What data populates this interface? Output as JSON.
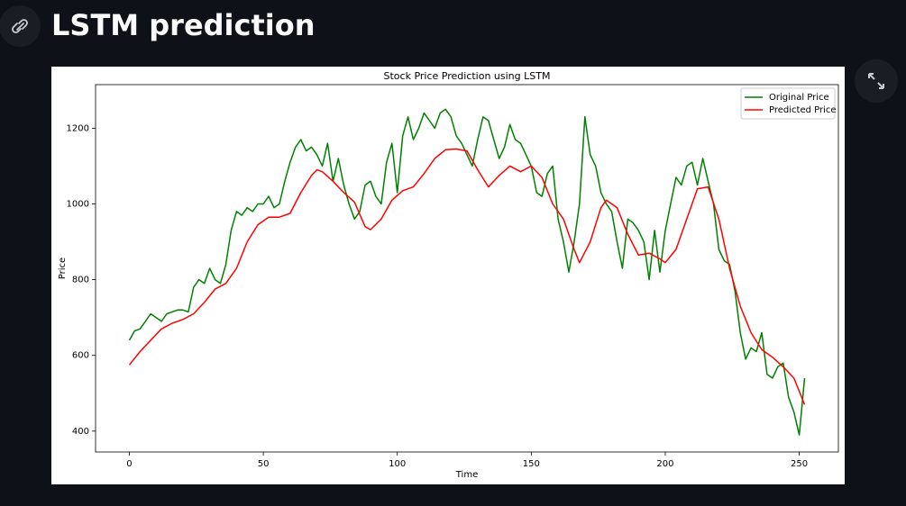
{
  "header": {
    "title": "LSTM prediction"
  },
  "chart_data": {
    "type": "line",
    "title": "Stock Price Prediction using LSTM",
    "xlabel": "Time",
    "ylabel": "Price",
    "xlim": [
      -12.6,
      264.6
    ],
    "ylim": [
      345,
      1315
    ],
    "xticks": [
      0,
      50,
      100,
      150,
      200,
      250
    ],
    "yticks": [
      400,
      600,
      800,
      1000,
      1200
    ],
    "grid": false,
    "legend": "upper right",
    "series": [
      {
        "name": "Original Price",
        "color": "#008000",
        "x": [
          0,
          2,
          4,
          6,
          8,
          10,
          12,
          14,
          16,
          18,
          20,
          22,
          24,
          26,
          28,
          30,
          32,
          34,
          36,
          38,
          40,
          42,
          44,
          46,
          48,
          50,
          52,
          54,
          56,
          58,
          60,
          62,
          64,
          66,
          68,
          70,
          72,
          74,
          76,
          78,
          80,
          82,
          84,
          86,
          88,
          90,
          92,
          94,
          96,
          98,
          100,
          102,
          104,
          106,
          108,
          110,
          112,
          114,
          116,
          118,
          120,
          122,
          124,
          126,
          128,
          130,
          132,
          134,
          136,
          138,
          140,
          142,
          144,
          146,
          148,
          150,
          152,
          154,
          156,
          158,
          160,
          162,
          164,
          166,
          168,
          170,
          172,
          174,
          176,
          178,
          180,
          182,
          184,
          186,
          188,
          190,
          192,
          194,
          196,
          198,
          200,
          202,
          204,
          206,
          208,
          210,
          212,
          214,
          216,
          218,
          220,
          222,
          224,
          226,
          228,
          230,
          232,
          234,
          236,
          238,
          240,
          242,
          244,
          246,
          248,
          250,
          252
        ],
        "values": [
          640,
          665,
          670,
          690,
          710,
          700,
          690,
          710,
          715,
          720,
          720,
          715,
          780,
          800,
          790,
          830,
          800,
          790,
          840,
          930,
          980,
          970,
          990,
          980,
          1000,
          1000,
          1020,
          990,
          1000,
          1060,
          1110,
          1150,
          1170,
          1140,
          1150,
          1130,
          1100,
          1160,
          1060,
          1120,
          1050,
          1000,
          960,
          980,
          1050,
          1060,
          1020,
          1000,
          1110,
          1160,
          1030,
          1180,
          1230,
          1170,
          1200,
          1240,
          1220,
          1200,
          1240,
          1250,
          1230,
          1180,
          1160,
          1130,
          1100,
          1170,
          1230,
          1220,
          1170,
          1120,
          1150,
          1210,
          1170,
          1160,
          1130,
          1100,
          1030,
          1020,
          1080,
          1100,
          960,
          900,
          820,
          900,
          1000,
          1230,
          1130,
          1100,
          1030,
          1000,
          980,
          900,
          830,
          960,
          950,
          930,
          900,
          800,
          930,
          820,
          930,
          1000,
          1070,
          1050,
          1100,
          1110,
          1050,
          1120,
          1060,
          1000,
          880,
          850,
          840,
          770,
          660,
          590,
          620,
          610,
          660,
          550,
          540,
          570,
          580,
          490,
          450,
          390,
          540
        ]
      },
      {
        "name": "Predicted Price",
        "color": "#ff0000",
        "x": [
          0,
          4,
          8,
          12,
          16,
          20,
          24,
          28,
          32,
          36,
          40,
          44,
          48,
          52,
          56,
          60,
          64,
          68,
          70,
          72,
          76,
          80,
          84,
          88,
          90,
          94,
          98,
          102,
          106,
          110,
          114,
          118,
          122,
          126,
          130,
          134,
          138,
          142,
          146,
          150,
          154,
          158,
          162,
          166,
          168,
          172,
          176,
          178,
          182,
          186,
          190,
          194,
          198,
          200,
          204,
          208,
          212,
          216,
          220,
          224,
          228,
          232,
          236,
          240,
          244,
          248,
          252
        ],
        "values": [
          575,
          610,
          640,
          670,
          685,
          695,
          710,
          740,
          775,
          790,
          830,
          900,
          945,
          965,
          965,
          975,
          1030,
          1075,
          1090,
          1085,
          1060,
          1030,
          1005,
          940,
          932,
          960,
          1010,
          1035,
          1045,
          1080,
          1120,
          1143,
          1145,
          1140,
          1090,
          1045,
          1075,
          1100,
          1085,
          1100,
          1070,
          1000,
          960,
          880,
          845,
          900,
          990,
          1010,
          990,
          920,
          865,
          870,
          855,
          845,
          880,
          960,
          1040,
          1045,
          960,
          830,
          730,
          660,
          615,
          595,
          570,
          540,
          470
        ]
      }
    ]
  }
}
